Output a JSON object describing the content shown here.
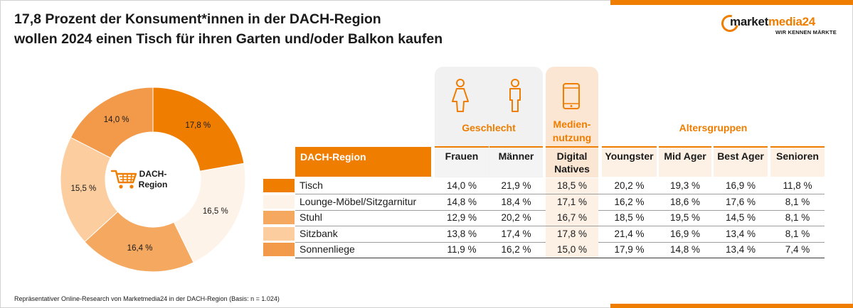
{
  "title": {
    "line1": "17,8 Prozent der Konsument*innen in der DACH-Region",
    "line2": "wollen 2024 einen Tisch für ihren Garten und/oder Balkon kaufen"
  },
  "logo": {
    "name_part1": "market",
    "name_part2": "media24",
    "tagline": "WIR KENNEN MÄRKTE"
  },
  "footnote": "Repräsentativer Online-Research von Marketmedia24 in der DACH-Region (Basis: n = 1.024)",
  "colors": {
    "accent": "#ef7d00",
    "tisch": "#ef7d00",
    "lounge": "#fef3e9",
    "stuhl": "#f4a860",
    "sitzbank": "#fbcd9f",
    "sonnenliege": "#f29a4a"
  },
  "chart_data": [
    {
      "type": "pie",
      "center_label": "DACH-\nRegion",
      "center_icon": "shopping-cart-icon",
      "categories": [
        "Tisch",
        "Lounge-Möbel/Sitzgarnitur",
        "Stuhl",
        "Sitzbank",
        "Sonnenliege"
      ],
      "values": [
        17.8,
        16.5,
        16.4,
        15.5,
        14.0
      ],
      "value_labels": [
        "17,8 %",
        "16,5 %",
        "16,4 %",
        "15,5 %",
        "14,0 %"
      ],
      "donut": true
    },
    {
      "type": "table",
      "groups": [
        {
          "label": "Geschlecht",
          "icons": [
            "female-person-icon",
            "male-person-icon"
          ]
        },
        {
          "label": "Medien-\nnutzung",
          "icons": [
            "smartphone-icon"
          ]
        },
        {
          "label": "Altersgruppen",
          "icons": []
        }
      ],
      "region_header": "DACH-Region",
      "columns": [
        "Frauen",
        "Männer",
        "Digital Natives",
        "Youngster",
        "Mid Ager",
        "Best Ager",
        "Senioren"
      ],
      "rows": [
        {
          "label": "Tisch",
          "values": [
            "14,0 %",
            "21,9 %",
            "18,5 %",
            "20,2 %",
            "19,3 %",
            "16,9 %",
            "11,8 %"
          ]
        },
        {
          "label": "Lounge-Möbel/Sitzgarnitur",
          "values": [
            "14,8 %",
            "18,4 %",
            "17,1 %",
            "16,2 %",
            "18,6 %",
            "17,6 %",
            "8,1 %"
          ]
        },
        {
          "label": "Stuhl",
          "values": [
            "12,9 %",
            "20,2 %",
            "16,7 %",
            "18,5 %",
            "19,5 %",
            "14,5 %",
            "8,1 %"
          ]
        },
        {
          "label": "Sitzbank",
          "values": [
            "13,8 %",
            "17,4 %",
            "17,8 %",
            "21,4 %",
            "16,9 %",
            "13,4 %",
            "8,1 %"
          ]
        },
        {
          "label": "Sonnenliege",
          "values": [
            "11,9 %",
            "16,2 %",
            "15,0 %",
            "17,9 %",
            "14,8 %",
            "13,4 %",
            "7,4 %"
          ]
        }
      ]
    }
  ]
}
